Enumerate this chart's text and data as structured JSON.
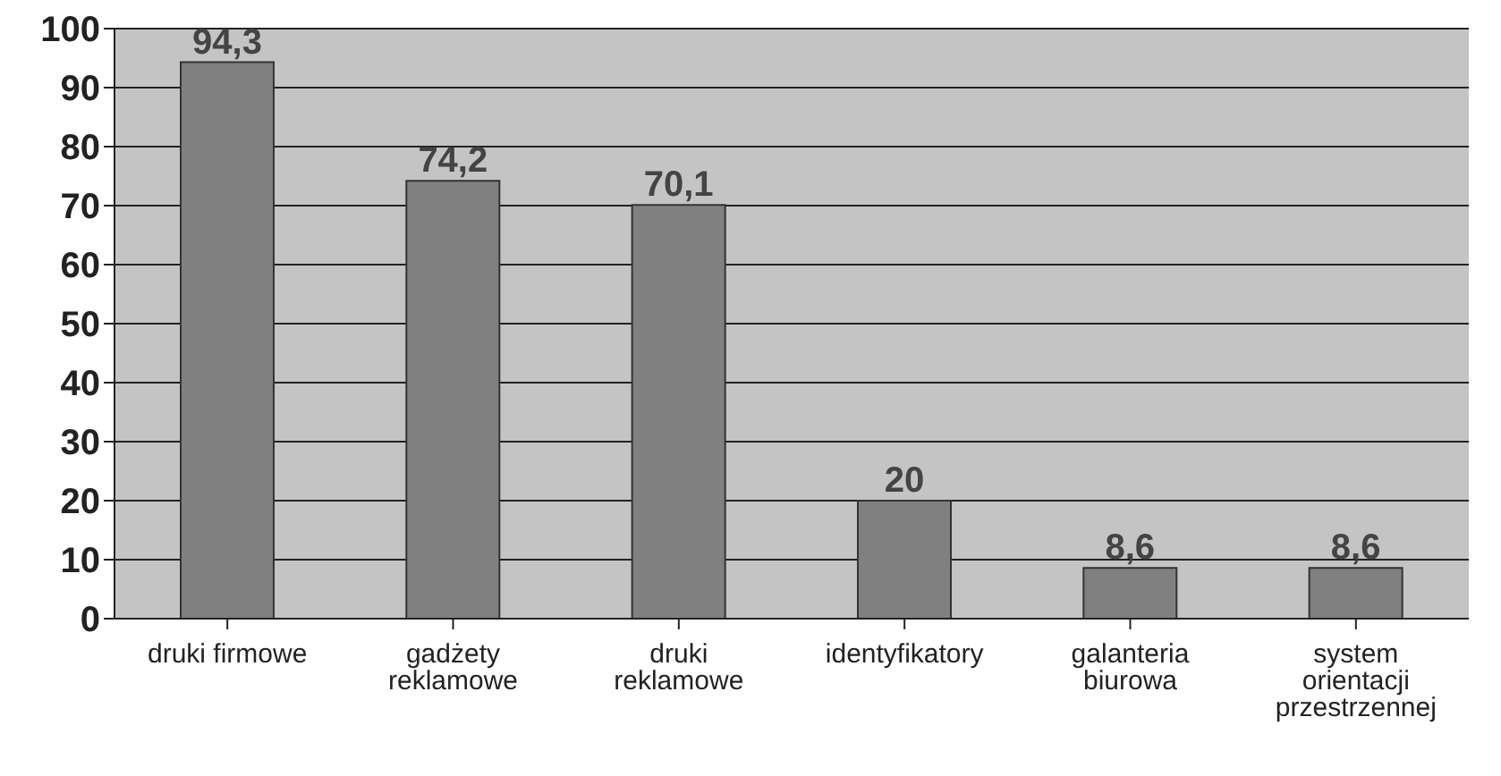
{
  "chart_data": {
    "type": "bar",
    "categories": [
      "druki firmowe",
      "gadżety reklamowe",
      "druki reklamowe",
      "identyfikatory",
      "galanteria biurowa",
      "system orientacji przestrzennej"
    ],
    "values": [
      94.3,
      74.2,
      70.1,
      20,
      8.6,
      8.6
    ],
    "value_labels": [
      "94,3",
      "74,2",
      "70,1",
      "20",
      "8,6",
      "8,6"
    ],
    "color": "#808080",
    "ylim": [
      0,
      100
    ],
    "yticks": [
      0,
      10,
      20,
      30,
      40,
      50,
      60,
      70,
      80,
      90,
      100
    ],
    "grid": "y"
  }
}
